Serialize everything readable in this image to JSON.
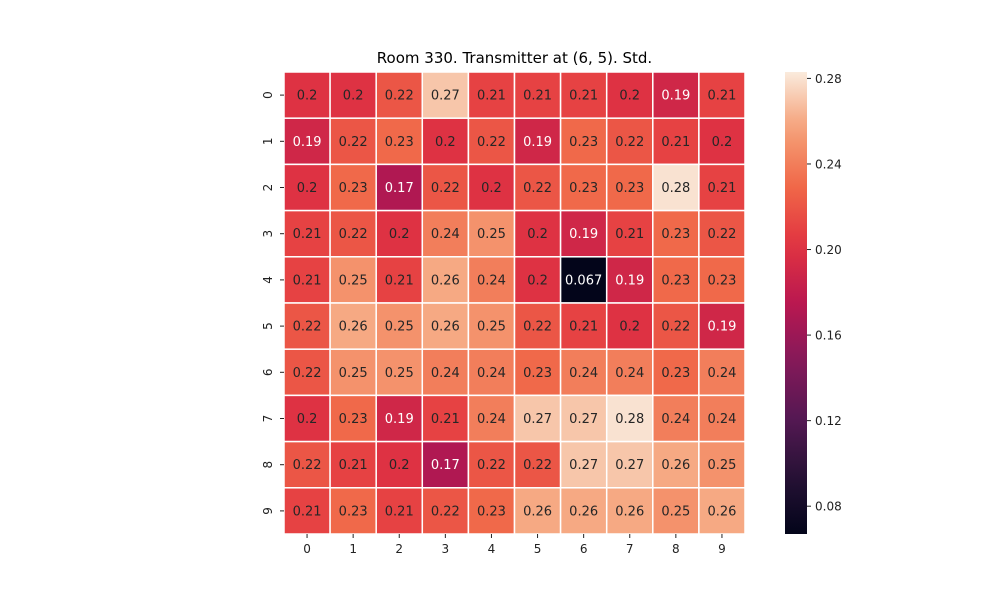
{
  "chart_data": {
    "type": "heatmap",
    "title": "Room 330. Transmitter at (6, 5). Std.",
    "xlabel": "",
    "ylabel": "",
    "x_categories": [
      "0",
      "1",
      "2",
      "3",
      "4",
      "5",
      "6",
      "7",
      "8",
      "9"
    ],
    "y_categories": [
      "0",
      "1",
      "2",
      "3",
      "4",
      "5",
      "6",
      "7",
      "8",
      "9"
    ],
    "values": [
      [
        0.2,
        0.2,
        0.22,
        0.27,
        0.21,
        0.21,
        0.21,
        0.2,
        0.19,
        0.21
      ],
      [
        0.19,
        0.22,
        0.23,
        0.2,
        0.22,
        0.19,
        0.23,
        0.22,
        0.21,
        0.2
      ],
      [
        0.2,
        0.23,
        0.17,
        0.22,
        0.2,
        0.22,
        0.23,
        0.23,
        0.28,
        0.21
      ],
      [
        0.21,
        0.22,
        0.2,
        0.24,
        0.25,
        0.2,
        0.19,
        0.21,
        0.23,
        0.22
      ],
      [
        0.21,
        0.25,
        0.21,
        0.26,
        0.24,
        0.2,
        0.067,
        0.19,
        0.23,
        0.23
      ],
      [
        0.22,
        0.26,
        0.25,
        0.26,
        0.25,
        0.22,
        0.21,
        0.2,
        0.22,
        0.19
      ],
      [
        0.22,
        0.25,
        0.25,
        0.24,
        0.24,
        0.23,
        0.24,
        0.24,
        0.23,
        0.24
      ],
      [
        0.2,
        0.23,
        0.19,
        0.21,
        0.24,
        0.27,
        0.27,
        0.28,
        0.24,
        0.24
      ],
      [
        0.22,
        0.21,
        0.2,
        0.17,
        0.22,
        0.22,
        0.27,
        0.27,
        0.26,
        0.25
      ],
      [
        0.21,
        0.23,
        0.21,
        0.22,
        0.23,
        0.26,
        0.26,
        0.26,
        0.25,
        0.26
      ]
    ],
    "annotations": [
      [
        "0.2",
        "0.2",
        "0.22",
        "0.27",
        "0.21",
        "0.21",
        "0.21",
        "0.2",
        "0.19",
        "0.21"
      ],
      [
        "0.19",
        "0.22",
        "0.23",
        "0.2",
        "0.22",
        "0.19",
        "0.23",
        "0.22",
        "0.21",
        "0.2"
      ],
      [
        "0.2",
        "0.23",
        "0.17",
        "0.22",
        "0.2",
        "0.22",
        "0.23",
        "0.23",
        "0.28",
        "0.21"
      ],
      [
        "0.21",
        "0.22",
        "0.2",
        "0.24",
        "0.25",
        "0.2",
        "0.19",
        "0.21",
        "0.23",
        "0.22"
      ],
      [
        "0.21",
        "0.25",
        "0.21",
        "0.26",
        "0.24",
        "0.2",
        "0.067",
        "0.19",
        "0.23",
        "0.23"
      ],
      [
        "0.22",
        "0.26",
        "0.25",
        "0.26",
        "0.25",
        "0.22",
        "0.21",
        "0.2",
        "0.22",
        "0.19"
      ],
      [
        "0.22",
        "0.25",
        "0.25",
        "0.24",
        "0.24",
        "0.23",
        "0.24",
        "0.24",
        "0.23",
        "0.24"
      ],
      [
        "0.2",
        "0.23",
        "0.19",
        "0.21",
        "0.24",
        "0.27",
        "0.27",
        "0.28",
        "0.24",
        "0.24"
      ],
      [
        "0.22",
        "0.21",
        "0.2",
        "0.17",
        "0.22",
        "0.22",
        "0.27",
        "0.27",
        "0.26",
        "0.25"
      ],
      [
        "0.21",
        "0.23",
        "0.21",
        "0.22",
        "0.23",
        "0.26",
        "0.26",
        "0.26",
        "0.25",
        "0.26"
      ]
    ],
    "colorbar": {
      "min": 0.067,
      "max": 0.283,
      "ticks": [
        0.08,
        0.12,
        0.16,
        0.2,
        0.24,
        0.28
      ],
      "tick_labels": [
        "0.08",
        "0.12",
        "0.16",
        "0.20",
        "0.24",
        "0.28"
      ]
    },
    "colormap": "rocket",
    "grid": false,
    "legend": "colorbar-right"
  }
}
